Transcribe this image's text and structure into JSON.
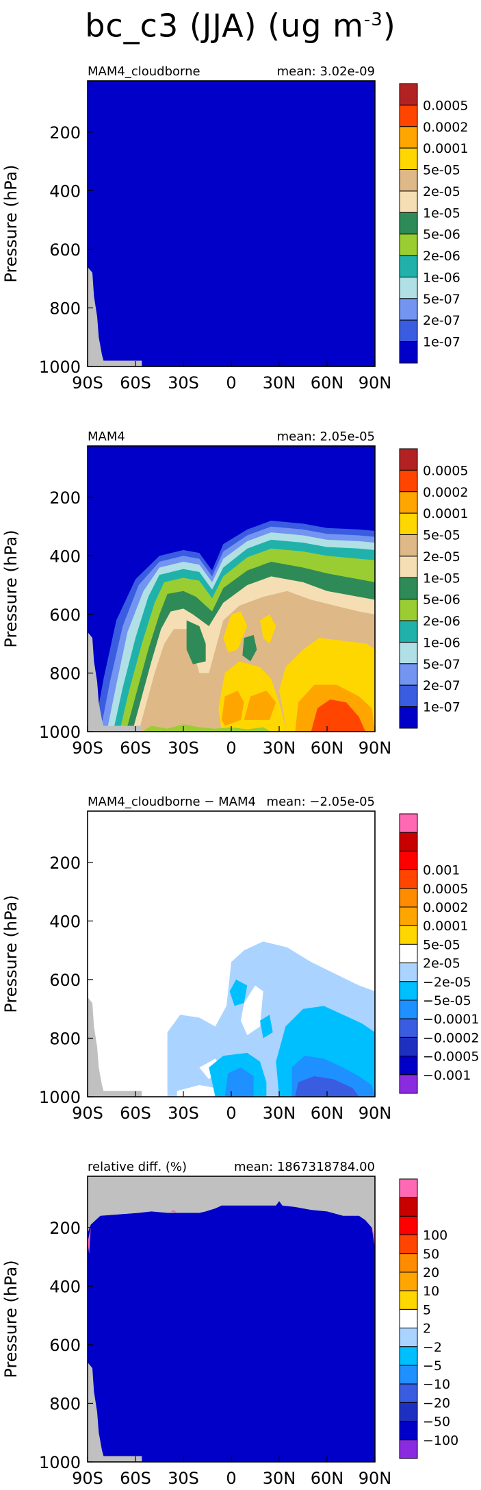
{
  "page": {
    "title": "bc_c3 (JJA) (ug m",
    "title_exp": "-3"
  },
  "colors": {
    "land": "#c0c0c0",
    "pos_palette": [
      "#0000c8",
      "#3a5ce0",
      "#7394f0",
      "#b0e0e6",
      "#20b2aa",
      "#9acd32",
      "#2e8b57",
      "#f5deb3",
      "#deb887",
      "#ffd700",
      "#ffa500",
      "#ff4500",
      "#b22222"
    ],
    "diff_palette": [
      "#8a2be2",
      "#0000c8",
      "#1e30c0",
      "#3a5ce0",
      "#1e90ff",
      "#00bfff",
      "#aad4ff",
      "#ffffff",
      "#ffd700",
      "#ffa500",
      "#ff8c00",
      "#ff4500",
      "#ff0000",
      "#c80000",
      "#ff69b4"
    ]
  },
  "chart_data": [
    {
      "type": "heatmap",
      "title": "MAM4_cloudborne",
      "mean_label": "mean: 3.02e-09",
      "ylabel": "Pressure (hPa)",
      "x_ticks": [
        "90S",
        "60S",
        "30S",
        "0",
        "30N",
        "60N",
        "90N"
      ],
      "y_ticks": [
        "200",
        "400",
        "600",
        "800",
        "1000"
      ],
      "xlim": [
        -90,
        90
      ],
      "ylim": [
        1000,
        25
      ],
      "colorbar_labels": [
        "1e-07",
        "2e-07",
        "5e-07",
        "1e-06",
        "2e-06",
        "5e-06",
        "1e-05",
        "2e-05",
        "5e-05",
        "0.0001",
        "0.0002",
        "0.0005"
      ],
      "palette": "pos"
    },
    {
      "type": "heatmap",
      "title": "MAM4",
      "mean_label": "mean: 2.05e-05",
      "ylabel": "Pressure (hPa)",
      "x_ticks": [
        "90S",
        "60S",
        "30S",
        "0",
        "30N",
        "60N",
        "90N"
      ],
      "y_ticks": [
        "200",
        "400",
        "600",
        "800",
        "1000"
      ],
      "xlim": [
        -90,
        90
      ],
      "ylim": [
        1000,
        25
      ],
      "colorbar_labels": [
        "1e-07",
        "2e-07",
        "5e-07",
        "1e-06",
        "2e-06",
        "5e-06",
        "1e-05",
        "2e-05",
        "5e-05",
        "0.0001",
        "0.0002",
        "0.0005"
      ],
      "palette": "pos"
    },
    {
      "type": "heatmap",
      "title": "MAM4_cloudborne − MAM4",
      "mean_label": "mean: −2.05e-05",
      "ylabel": "Pressure (hPa)",
      "x_ticks": [
        "90S",
        "60S",
        "30S",
        "0",
        "30N",
        "60N",
        "90N"
      ],
      "y_ticks": [
        "200",
        "400",
        "600",
        "800",
        "1000"
      ],
      "xlim": [
        -90,
        90
      ],
      "ylim": [
        1000,
        25
      ],
      "colorbar_labels": [
        "−0.001",
        "−0.0005",
        "−0.0002",
        "−0.0001",
        "−5e-05",
        "−2e-05",
        "2e-05",
        "5e-05",
        "0.0001",
        "0.0002",
        "0.0005",
        "0.001"
      ],
      "palette": "diff"
    },
    {
      "type": "heatmap",
      "title": "relative diff. (%)",
      "mean_label": "mean: 1867318784.00",
      "ylabel": "Pressure (hPa)",
      "x_ticks": [
        "90S",
        "60S",
        "30S",
        "0",
        "30N",
        "60N",
        "90N"
      ],
      "y_ticks": [
        "200",
        "400",
        "600",
        "800",
        "1000"
      ],
      "xlim": [
        -90,
        90
      ],
      "ylim": [
        1000,
        25
      ],
      "colorbar_labels": [
        "−100",
        "−50",
        "−20",
        "−10",
        "−5",
        "−2",
        "2",
        "5",
        "10",
        "20",
        "50",
        "100"
      ],
      "palette": "diff"
    }
  ]
}
